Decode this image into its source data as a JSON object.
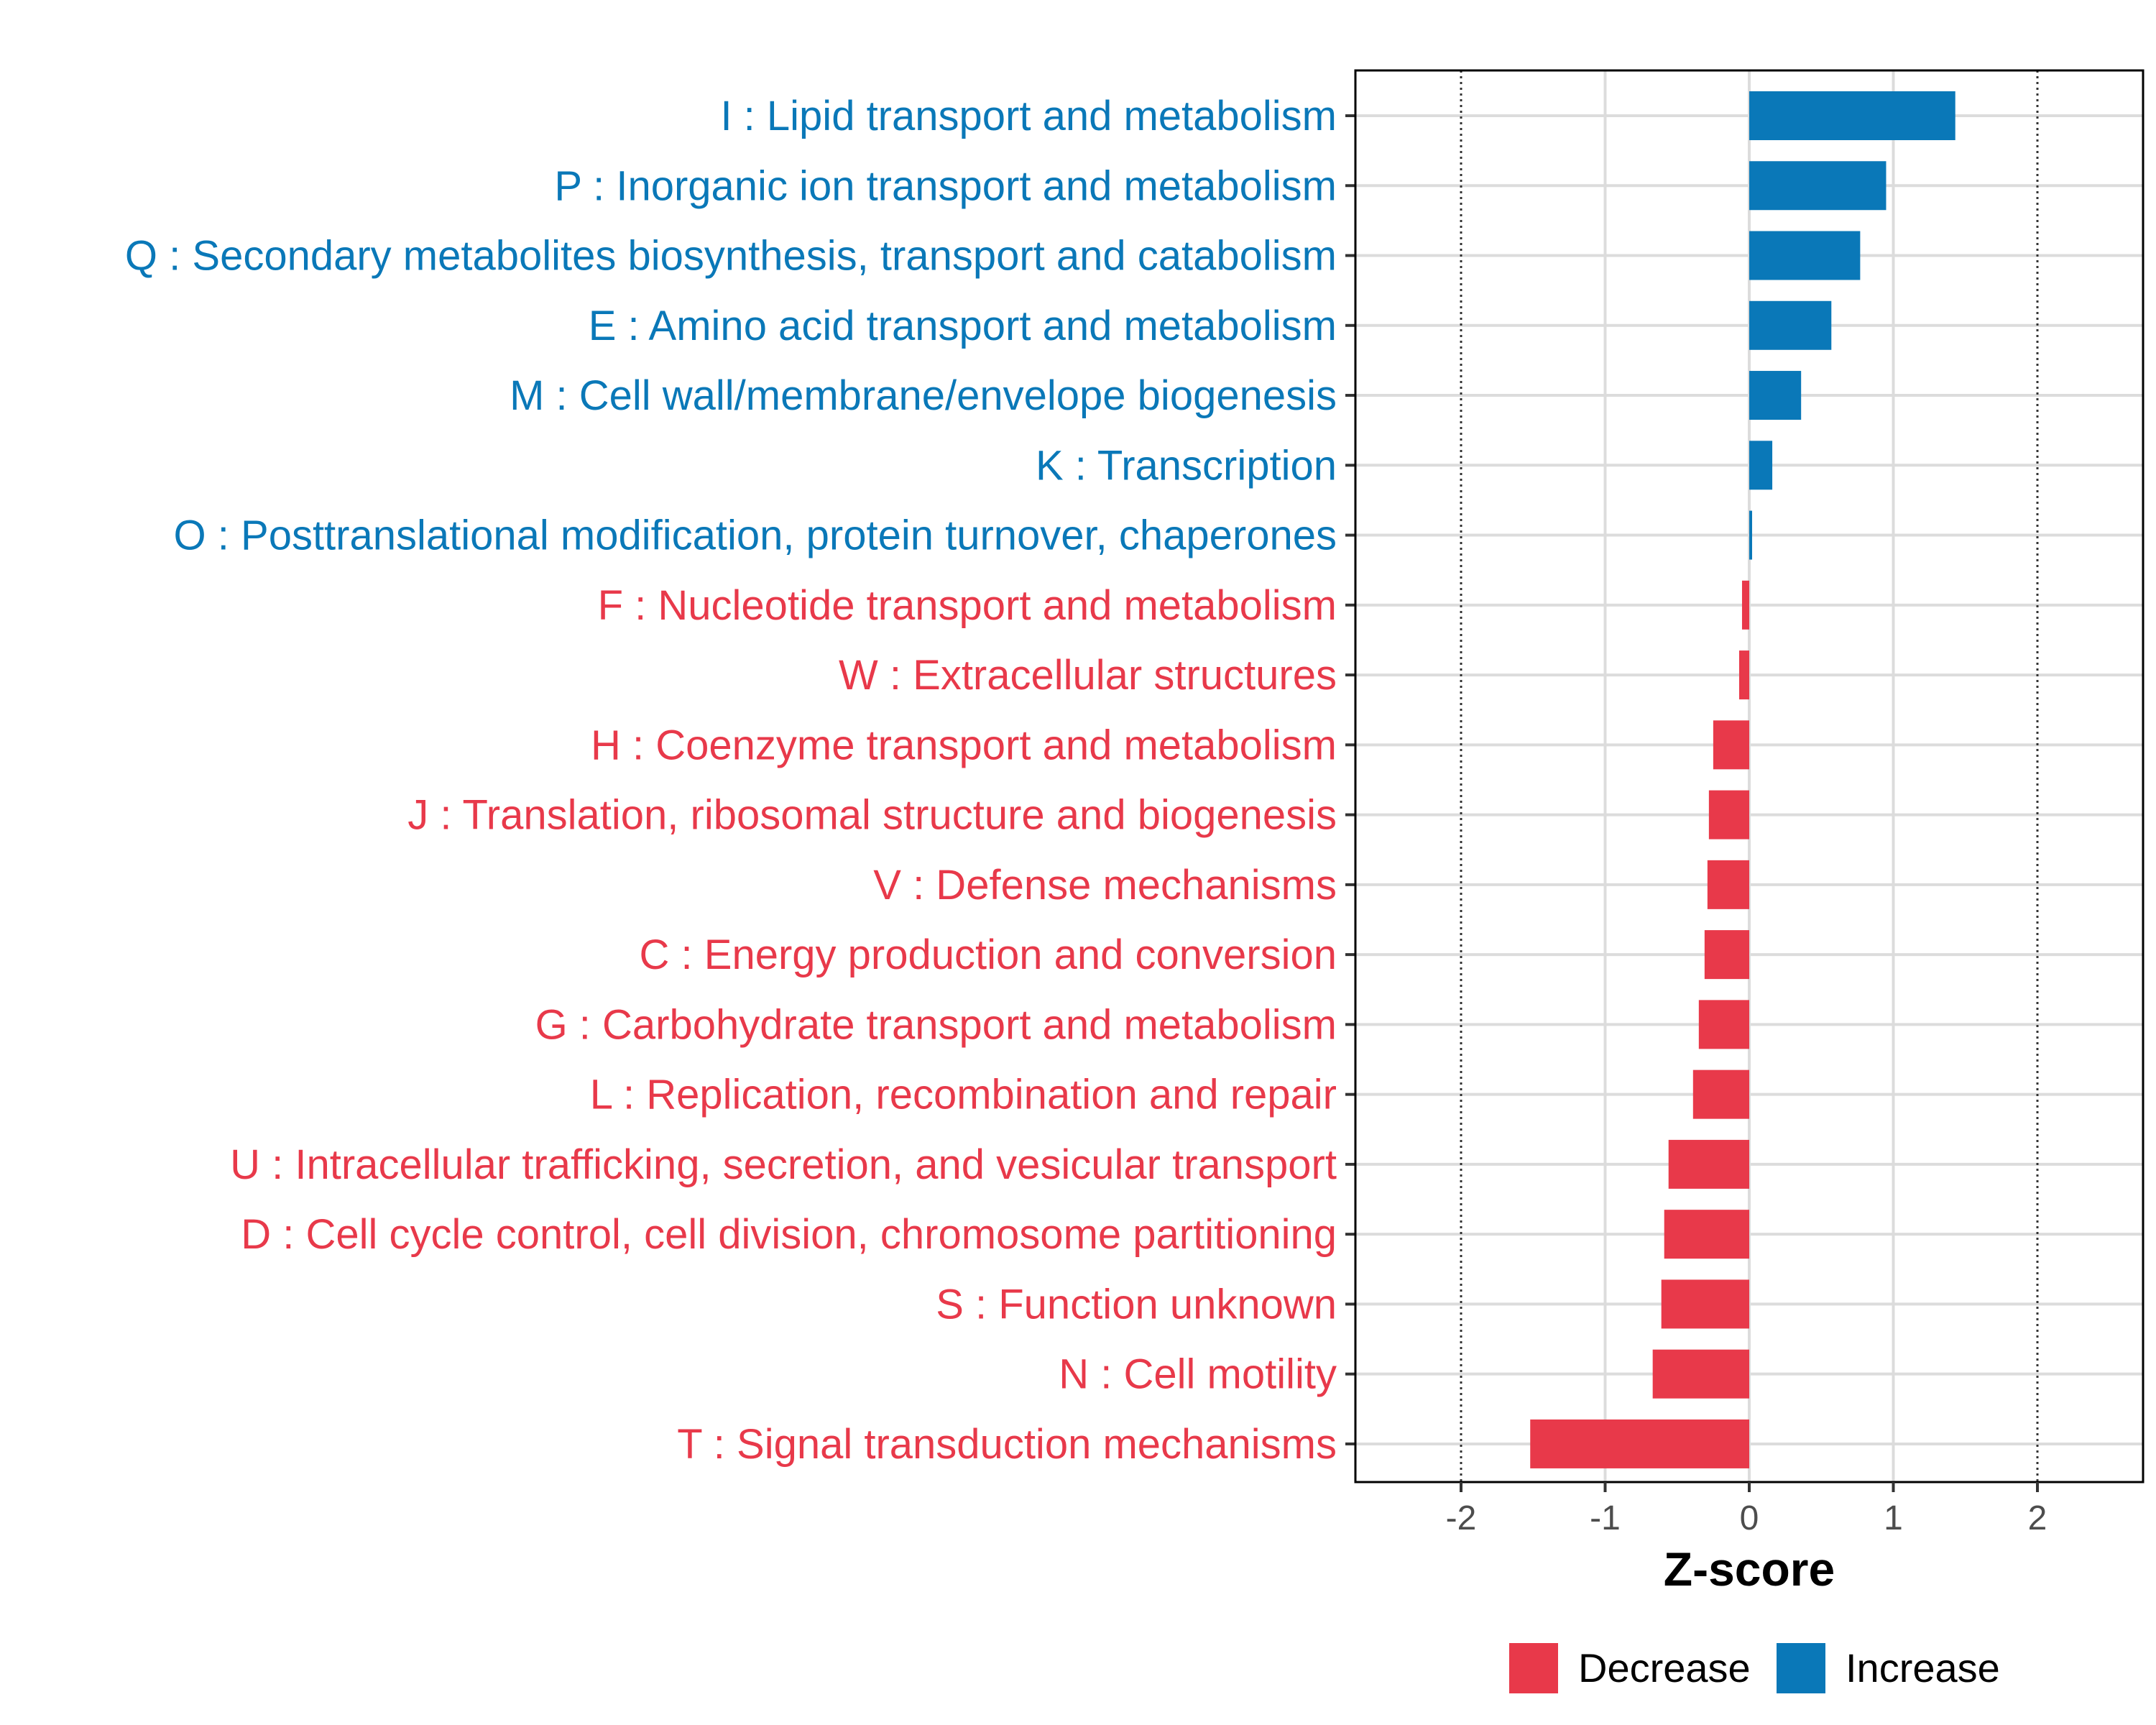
{
  "chart_data": {
    "type": "bar",
    "orientation": "horizontal",
    "title": "",
    "xlabel": "Z-score",
    "ylabel": "",
    "xlim": [
      -2.7,
      2.7
    ],
    "xticks": [
      -2,
      -1,
      0,
      1,
      2
    ],
    "xtick_labels": [
      "-2",
      "-1",
      "0",
      "1",
      "2"
    ],
    "reference_lines": [
      -2,
      2
    ],
    "grid": true,
    "legend_position": "bottom",
    "colors": {
      "Decrease": "#e8394a",
      "Increase": "#0a78b8"
    },
    "categories": [
      "I : Lipid transport and metabolism",
      "P : Inorganic ion transport and metabolism",
      "Q : Secondary metabolites biosynthesis, transport and catabolism",
      "E : Amino acid transport and metabolism",
      "M : Cell wall/membrane/envelope biogenesis",
      "K : Transcription",
      "O : Posttranslational modification, protein turnover, chaperones",
      "F : Nucleotide transport and metabolism",
      "W : Extracellular structures",
      "H : Coenzyme transport and metabolism",
      "J : Translation, ribosomal structure and biogenesis",
      "V : Defense mechanisms",
      "C : Energy production and conversion",
      "G : Carbohydrate transport and metabolism",
      "L : Replication, recombination and repair",
      "U : Intracellular trafficking, secretion, and vesicular transport",
      "D : Cell cycle control, cell division, chromosome partitioning",
      "S : Function unknown",
      "N : Cell motility",
      "T : Signal transduction mechanisms"
    ],
    "values": [
      1.43,
      0.95,
      0.77,
      0.57,
      0.36,
      0.16,
      0.02,
      -0.05,
      -0.07,
      -0.25,
      -0.28,
      -0.29,
      -0.31,
      -0.35,
      -0.39,
      -0.56,
      -0.59,
      -0.61,
      -0.67,
      -1.52
    ],
    "groups": [
      "Increase",
      "Increase",
      "Increase",
      "Increase",
      "Increase",
      "Increase",
      "Increase",
      "Decrease",
      "Decrease",
      "Decrease",
      "Decrease",
      "Decrease",
      "Decrease",
      "Decrease",
      "Decrease",
      "Decrease",
      "Decrease",
      "Decrease",
      "Decrease",
      "Decrease"
    ],
    "legend": [
      {
        "name": "Decrease",
        "color": "#e8394a"
      },
      {
        "name": "Increase",
        "color": "#0a78b8"
      }
    ]
  }
}
